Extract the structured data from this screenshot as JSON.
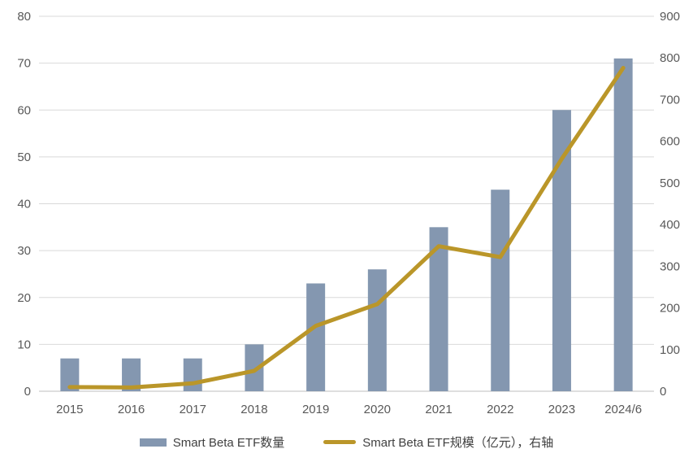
{
  "chart_data": {
    "type": "combo",
    "title": "",
    "categories": [
      "2015",
      "2016",
      "2017",
      "2018",
      "2019",
      "2020",
      "2021",
      "2022",
      "2023",
      "2024/6"
    ],
    "series": [
      {
        "name": "Smart Beta ETF数量",
        "type": "bar",
        "axis": "left",
        "color": "#8497B0",
        "values": [
          7,
          7,
          7,
          10,
          23,
          26,
          35,
          43,
          60,
          71
        ]
      },
      {
        "name": "Smart Beta ETF规模（亿元），右轴",
        "type": "line",
        "axis": "right",
        "color": "#BA9629",
        "values": [
          10,
          9,
          19,
          49,
          157,
          209,
          348,
          322,
          558,
          776
        ]
      }
    ],
    "left_axis": {
      "min": 0,
      "max": 80,
      "step": 10,
      "tick_labels": [
        "0",
        "10",
        "20",
        "30",
        "40",
        "50",
        "60",
        "70",
        "80"
      ]
    },
    "right_axis": {
      "min": 0,
      "max": 900,
      "step": 100,
      "tick_labels": [
        "0",
        "100",
        "200",
        "300",
        "400",
        "500",
        "600",
        "700",
        "800",
        "900"
      ]
    },
    "grid": true,
    "legend_position": "bottom",
    "colors": {
      "background": "#FFFFFF",
      "gridline": "#D9D9D9",
      "axis_line": "#BFBFBF",
      "tick_text": "#595959",
      "legend_text": "#404040"
    }
  }
}
